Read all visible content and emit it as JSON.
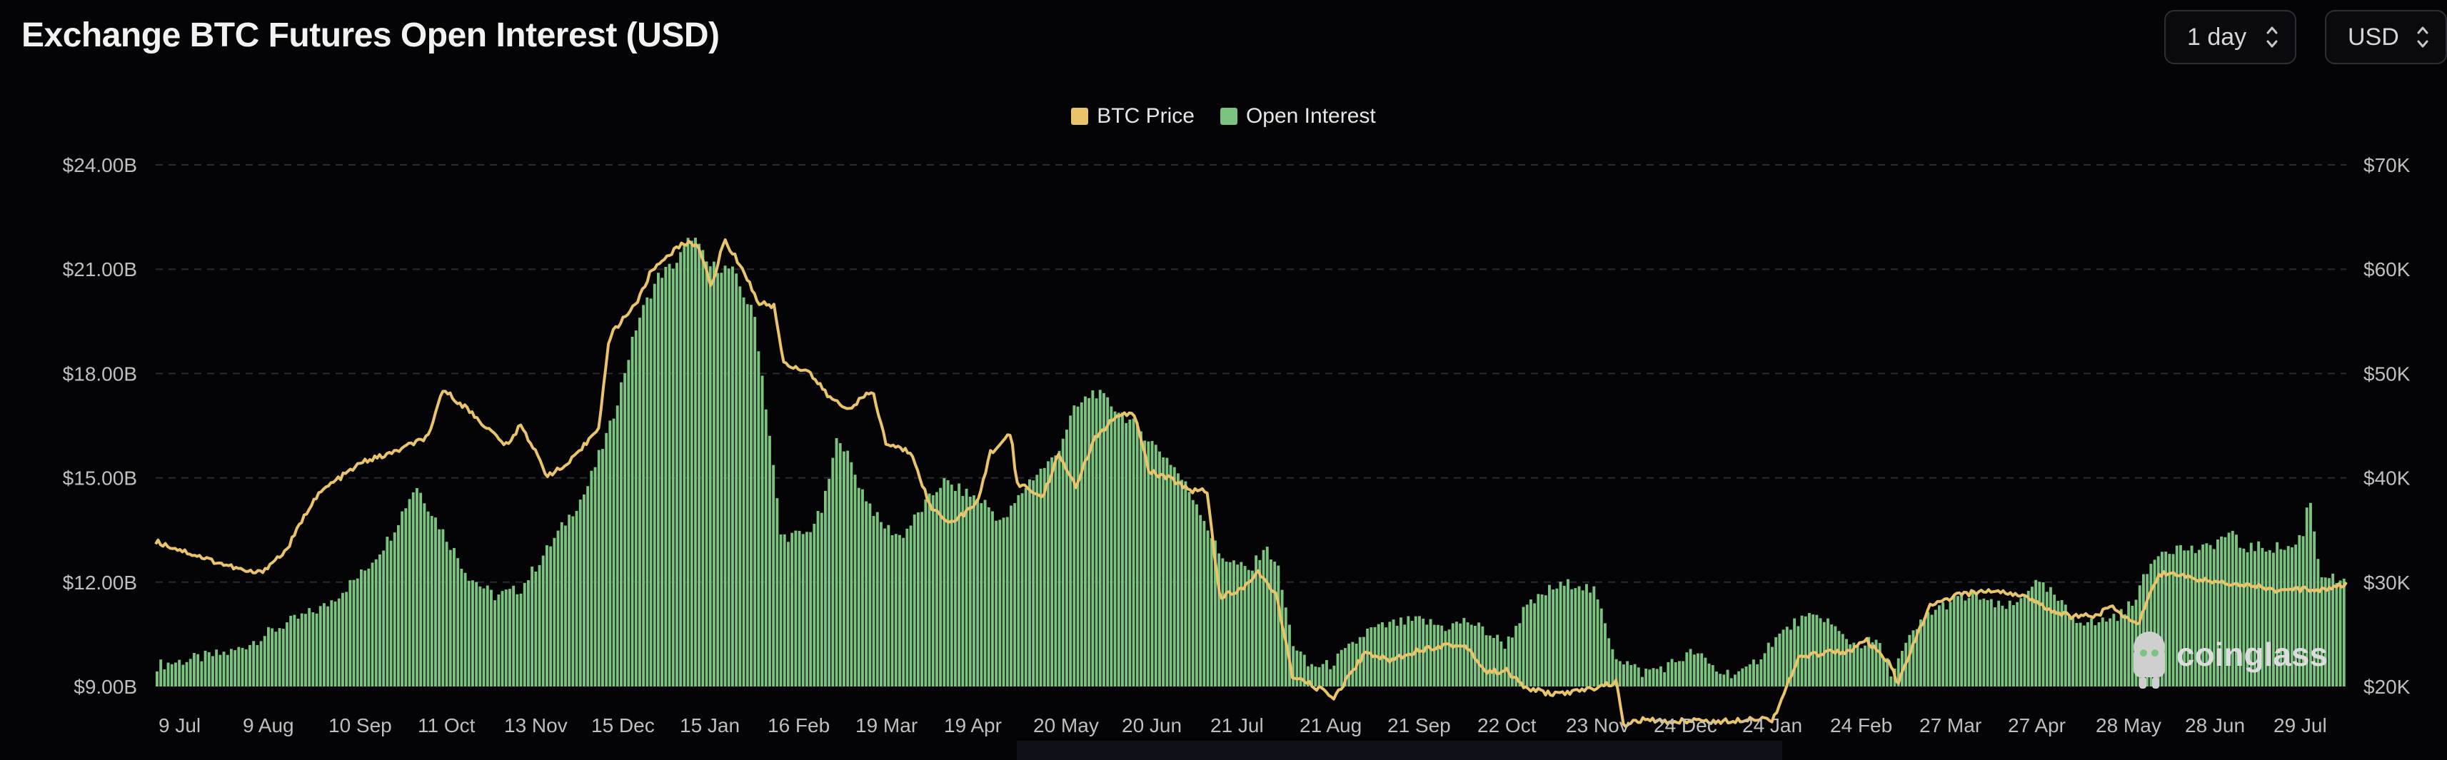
{
  "header": {
    "title": "Exchange BTC Futures Open Interest (USD)",
    "interval_select": "1 day",
    "currency_select": "USD"
  },
  "watermark": "coinglass",
  "colors": {
    "background": "#040407",
    "btc_price": "#e9c46a",
    "open_interest": "#7bc47f",
    "grid": "#2a2a2f"
  },
  "chart_data": {
    "type": "bar",
    "legend_position": "top-center",
    "grid": true,
    "series": [
      {
        "name": "BTC Price",
        "type": "line",
        "axis": "right"
      },
      {
        "name": "Open Interest",
        "type": "bar",
        "axis": "left"
      }
    ],
    "left_axis": {
      "ylim": [
        9.0,
        24.0
      ],
      "ticks": [
        "$9.00B",
        "$12.00B",
        "$15.00B",
        "$18.00B",
        "$21.00B",
        "$24.00B"
      ],
      "tick_values": [
        9,
        12,
        15,
        18,
        21,
        24
      ]
    },
    "right_axis": {
      "ylim": [
        20000,
        70000
      ],
      "ticks": [
        "$20K",
        "$30K",
        "$40K",
        "$50K",
        "$60K",
        "$70K"
      ],
      "tick_values": [
        20000,
        30000,
        40000,
        50000,
        60000,
        70000
      ]
    },
    "x_ticks": [
      "9 Jul",
      "9 Aug",
      "10 Sep",
      "11 Oct",
      "13 Nov",
      "15 Dec",
      "15 Jan",
      "16 Feb",
      "19 Mar",
      "19 Apr",
      "20 May",
      "20 Jun",
      "21 Jul",
      "21 Aug",
      "21 Sep",
      "22 Oct",
      "23 Nov",
      "24 Dec",
      "24 Jan",
      "24 Feb",
      "27 Mar",
      "27 Apr",
      "28 May",
      "28 Jun",
      "29 Jul"
    ],
    "open_interest_keypoints_B": [
      [
        0,
        9.6
      ],
      [
        3,
        10.0
      ],
      [
        5,
        10.8
      ],
      [
        6.5,
        11.3
      ],
      [
        8,
        12.3
      ],
      [
        9,
        13.3
      ],
      [
        10,
        14.8
      ],
      [
        11,
        13.5
      ],
      [
        12,
        12.2
      ],
      [
        13,
        11.6
      ],
      [
        14,
        11.8
      ],
      [
        15,
        12.9
      ],
      [
        16.5,
        14.6
      ],
      [
        17.5,
        16.6
      ],
      [
        18.5,
        19.5
      ],
      [
        19.3,
        20.8
      ],
      [
        20,
        21.2
      ],
      [
        20.6,
        22.0
      ],
      [
        21.2,
        21.1
      ],
      [
        22.1,
        21.0
      ],
      [
        23,
        19.6
      ],
      [
        23.6,
        16.0
      ],
      [
        24,
        13.3
      ],
      [
        25,
        13.4
      ],
      [
        25.6,
        14.1
      ],
      [
        26.2,
        16.3
      ],
      [
        27,
        14.8
      ],
      [
        27.8,
        13.7
      ],
      [
        28.6,
        13.3
      ],
      [
        29.3,
        14.0
      ],
      [
        30.2,
        14.9
      ],
      [
        31,
        14.6
      ],
      [
        31.8,
        14.3
      ],
      [
        32.5,
        13.7
      ],
      [
        33.5,
        14.9
      ],
      [
        34.5,
        15.6
      ],
      [
        35.2,
        16.9
      ],
      [
        36,
        17.5
      ],
      [
        37,
        16.9
      ],
      [
        38,
        16.2
      ],
      [
        39,
        15.4
      ],
      [
        40,
        14.2
      ],
      [
        40.8,
        12.8
      ],
      [
        41.5,
        12.5
      ],
      [
        42,
        12.3
      ],
      [
        42.5,
        13.0
      ],
      [
        43,
        12.6
      ],
      [
        43.6,
        10.3
      ],
      [
        44.2,
        9.6
      ],
      [
        45,
        9.6
      ],
      [
        45.8,
        10.1
      ],
      [
        46.5,
        10.6
      ],
      [
        47.5,
        10.8
      ],
      [
        48.5,
        10.9
      ],
      [
        49.5,
        10.7
      ],
      [
        50.3,
        10.9
      ],
      [
        51,
        10.6
      ],
      [
        51.8,
        10.2
      ],
      [
        52.5,
        11.2
      ],
      [
        53.5,
        11.8
      ],
      [
        54.5,
        12.0
      ],
      [
        55.2,
        11.7
      ],
      [
        56,
        9.9
      ],
      [
        57,
        9.4
      ],
      [
        58,
        9.6
      ],
      [
        59,
        10.0
      ],
      [
        60,
        9.4
      ],
      [
        61,
        9.4
      ],
      [
        62,
        10.3
      ],
      [
        63,
        10.9
      ],
      [
        64,
        11.0
      ],
      [
        64.6,
        10.5
      ],
      [
        65.2,
        10.2
      ],
      [
        66,
        10.3
      ],
      [
        66.6,
        9.4
      ],
      [
        67.3,
        10.4
      ],
      [
        68,
        11.1
      ],
      [
        69,
        11.5
      ],
      [
        70,
        11.6
      ],
      [
        70.5,
        11.3
      ],
      [
        71.3,
        11.3
      ],
      [
        72,
        12.0
      ],
      [
        72.7,
        11.7
      ],
      [
        73.5,
        11.0
      ],
      [
        74.4,
        10.8
      ],
      [
        75,
        11.0
      ],
      [
        75.5,
        11.1
      ],
      [
        76,
        11.7
      ],
      [
        76.8,
        12.9
      ],
      [
        77.5,
        13.0
      ],
      [
        78.5,
        12.9
      ],
      [
        79.3,
        13.3
      ],
      [
        79.6,
        13.4
      ],
      [
        80,
        13.0
      ],
      [
        81,
        13.0
      ],
      [
        82,
        13.0
      ],
      [
        82.4,
        13.5
      ],
      [
        82.6,
        14.6
      ],
      [
        83,
        12.3
      ],
      [
        84,
        11.9
      ]
    ],
    "btc_price_keypoints_usd": [
      [
        0,
        33900
      ],
      [
        2,
        32200
      ],
      [
        3.5,
        31000
      ],
      [
        4,
        30900
      ],
      [
        5,
        33000
      ],
      [
        6,
        37700
      ],
      [
        6.5,
        39000
      ],
      [
        7,
        39900
      ],
      [
        8,
        41600
      ],
      [
        9,
        42300
      ],
      [
        10.5,
        44000
      ],
      [
        11,
        48500
      ],
      [
        12,
        46500
      ],
      [
        12.7,
        44800
      ],
      [
        13.5,
        43000
      ],
      [
        14,
        45200
      ],
      [
        15,
        40300
      ],
      [
        15.6,
        40900
      ],
      [
        16.2,
        42300
      ],
      [
        17,
        45000
      ],
      [
        17.4,
        53500
      ],
      [
        18,
        55500
      ],
      [
        18.5,
        57000
      ],
      [
        19,
        59800
      ],
      [
        19.7,
        61500
      ],
      [
        20.3,
        62500
      ],
      [
        20.8,
        62400
      ],
      [
        21.3,
        58200
      ],
      [
        21.8,
        62800
      ],
      [
        22.5,
        60100
      ],
      [
        23.1,
        56800
      ],
      [
        23.7,
        56500
      ],
      [
        24.1,
        50900
      ],
      [
        25,
        50300
      ],
      [
        25.8,
        47800
      ],
      [
        26.5,
        46600
      ],
      [
        27.5,
        48300
      ],
      [
        28,
        43300
      ],
      [
        29,
        42400
      ],
      [
        29.7,
        37200
      ],
      [
        30.5,
        35700
      ],
      [
        31.5,
        37500
      ],
      [
        32,
        42400
      ],
      [
        32.8,
        44200
      ],
      [
        33,
        39600
      ],
      [
        34,
        38100
      ],
      [
        34.6,
        42200
      ],
      [
        35.3,
        39200
      ],
      [
        36,
        43700
      ],
      [
        36.7,
        45600
      ],
      [
        37.5,
        46300
      ],
      [
        38.1,
        40600
      ],
      [
        39,
        39800
      ],
      [
        39.7,
        38800
      ],
      [
        40.3,
        38900
      ],
      [
        40.8,
        28600
      ],
      [
        41.5,
        29100
      ],
      [
        42.3,
        30900
      ],
      [
        43,
        28600
      ],
      [
        43.6,
        20800
      ],
      [
        44.2,
        20300
      ],
      [
        45.2,
        19000
      ],
      [
        46,
        21900
      ],
      [
        46.4,
        23300
      ],
      [
        47.3,
        22500
      ],
      [
        48.3,
        23400
      ],
      [
        49.5,
        24000
      ],
      [
        50.3,
        23800
      ],
      [
        51,
        21400
      ],
      [
        51.8,
        21500
      ],
      [
        52.5,
        19900
      ],
      [
        53.5,
        19300
      ],
      [
        54.5,
        19500
      ],
      [
        55.2,
        19900
      ],
      [
        56,
        20400
      ],
      [
        56.3,
        16300
      ],
      [
        57,
        16800
      ],
      [
        58,
        16600
      ],
      [
        59,
        16800
      ],
      [
        60,
        16600
      ],
      [
        61.3,
        17000
      ],
      [
        62,
        16800
      ],
      [
        63,
        22700
      ],
      [
        64,
        23300
      ],
      [
        65,
        23400
      ],
      [
        65.6,
        24400
      ],
      [
        66.5,
        22100
      ],
      [
        66.8,
        20300
      ],
      [
        67.3,
        23400
      ],
      [
        68,
        27600
      ],
      [
        69,
        28700
      ],
      [
        70,
        29100
      ],
      [
        70.5,
        29200
      ],
      [
        71.5,
        28800
      ],
      [
        72.5,
        27500
      ],
      [
        73.5,
        26700
      ],
      [
        74.5,
        26900
      ],
      [
        75,
        27700
      ],
      [
        76,
        25900
      ],
      [
        76.8,
        30800
      ],
      [
        77.5,
        30700
      ],
      [
        78.5,
        30200
      ],
      [
        79.5,
        29900
      ],
      [
        80.5,
        29700
      ],
      [
        81.5,
        29100
      ],
      [
        82.2,
        29300
      ],
      [
        83,
        29300
      ],
      [
        84,
        29800
      ]
    ],
    "x_span_days": 84
  }
}
